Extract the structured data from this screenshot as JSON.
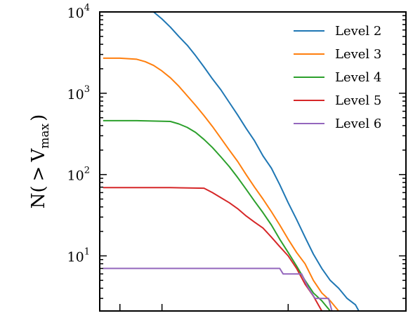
{
  "chart_data": {
    "type": "line",
    "title": "",
    "xlabel": "",
    "ylabel": {
      "main": "N(",
      "operator": ">",
      "var": "V",
      "sub": "max",
      "close": ")"
    },
    "yscale": "log",
    "ylim": [
      2.1,
      10000
    ],
    "xlim": [
      1.38,
      3.2
    ],
    "yticks": [
      {
        "base": "10",
        "exp": "1",
        "value": 10
      },
      {
        "base": "10",
        "exp": "2",
        "value": 100
      },
      {
        "base": "10",
        "exp": "3",
        "value": 1000
      },
      {
        "base": "10",
        "exp": "4",
        "value": 10000
      }
    ],
    "xtick_values": [
      1.5,
      1.75,
      2.5
    ],
    "legend_position": "top-right",
    "series": [
      {
        "name": "Level 2",
        "color": "#1f77b4",
        "points": [
          [
            1.7,
            10000
          ],
          [
            1.75,
            8200
          ],
          [
            1.8,
            6500
          ],
          [
            1.85,
            5000
          ],
          [
            1.9,
            3900
          ],
          [
            1.95,
            2900
          ],
          [
            2.0,
            2100
          ],
          [
            2.05,
            1500
          ],
          [
            2.1,
            1100
          ],
          [
            2.15,
            770
          ],
          [
            2.2,
            540
          ],
          [
            2.25,
            370
          ],
          [
            2.3,
            260
          ],
          [
            2.35,
            170
          ],
          [
            2.4,
            120
          ],
          [
            2.45,
            75
          ],
          [
            2.5,
            45
          ],
          [
            2.55,
            28
          ],
          [
            2.6,
            17
          ],
          [
            2.65,
            10.5
          ],
          [
            2.7,
            7
          ],
          [
            2.75,
            5
          ],
          [
            2.8,
            4
          ],
          [
            2.85,
            3
          ],
          [
            2.9,
            2.5
          ],
          [
            2.92,
            2.1
          ]
        ]
      },
      {
        "name": "Level 3",
        "color": "#ff7f0e",
        "points": [
          [
            1.4,
            2700
          ],
          [
            1.5,
            2700
          ],
          [
            1.6,
            2620
          ],
          [
            1.65,
            2450
          ],
          [
            1.7,
            2200
          ],
          [
            1.75,
            1880
          ],
          [
            1.8,
            1550
          ],
          [
            1.85,
            1220
          ],
          [
            1.9,
            930
          ],
          [
            1.95,
            710
          ],
          [
            2.0,
            530
          ],
          [
            2.05,
            390
          ],
          [
            2.1,
            280
          ],
          [
            2.15,
            200
          ],
          [
            2.2,
            145
          ],
          [
            2.25,
            100
          ],
          [
            2.3,
            70
          ],
          [
            2.35,
            50
          ],
          [
            2.4,
            35
          ],
          [
            2.45,
            24
          ],
          [
            2.5,
            16
          ],
          [
            2.55,
            11
          ],
          [
            2.6,
            8
          ],
          [
            2.65,
            5
          ],
          [
            2.7,
            3.5
          ],
          [
            2.75,
            2.8
          ],
          [
            2.8,
            2.1
          ]
        ]
      },
      {
        "name": "Level 4",
        "color": "#2ca02c",
        "points": [
          [
            1.4,
            460
          ],
          [
            1.6,
            460
          ],
          [
            1.8,
            450
          ],
          [
            1.85,
            420
          ],
          [
            1.9,
            380
          ],
          [
            1.95,
            330
          ],
          [
            2.0,
            270
          ],
          [
            2.05,
            215
          ],
          [
            2.1,
            165
          ],
          [
            2.15,
            125
          ],
          [
            2.2,
            92
          ],
          [
            2.25,
            66
          ],
          [
            2.3,
            47
          ],
          [
            2.35,
            34
          ],
          [
            2.4,
            24
          ],
          [
            2.45,
            16
          ],
          [
            2.5,
            11
          ],
          [
            2.55,
            7.5
          ],
          [
            2.6,
            5
          ],
          [
            2.65,
            3.5
          ],
          [
            2.7,
            2.8
          ],
          [
            2.75,
            2.1
          ]
        ]
      },
      {
        "name": "Level 5",
        "color": "#d62728",
        "points": [
          [
            1.4,
            69
          ],
          [
            1.6,
            69
          ],
          [
            1.8,
            69
          ],
          [
            2.0,
            68
          ],
          [
            2.05,
            60
          ],
          [
            2.1,
            52
          ],
          [
            2.15,
            45
          ],
          [
            2.2,
            38
          ],
          [
            2.25,
            31
          ],
          [
            2.3,
            26
          ],
          [
            2.35,
            22
          ],
          [
            2.4,
            17
          ],
          [
            2.45,
            13
          ],
          [
            2.5,
            10
          ],
          [
            2.55,
            7
          ],
          [
            2.6,
            4.5
          ],
          [
            2.65,
            3.2
          ],
          [
            2.7,
            2.1
          ]
        ]
      },
      {
        "name": "Level 6",
        "color": "#9467bd",
        "points": [
          [
            1.4,
            7
          ],
          [
            1.6,
            7
          ],
          [
            1.8,
            7
          ],
          [
            2.0,
            7
          ],
          [
            2.2,
            7
          ],
          [
            2.45,
            7
          ],
          [
            2.47,
            6
          ],
          [
            2.58,
            6
          ],
          [
            2.62,
            4
          ],
          [
            2.66,
            3
          ],
          [
            2.74,
            3
          ],
          [
            2.76,
            2.1
          ]
        ]
      }
    ]
  }
}
